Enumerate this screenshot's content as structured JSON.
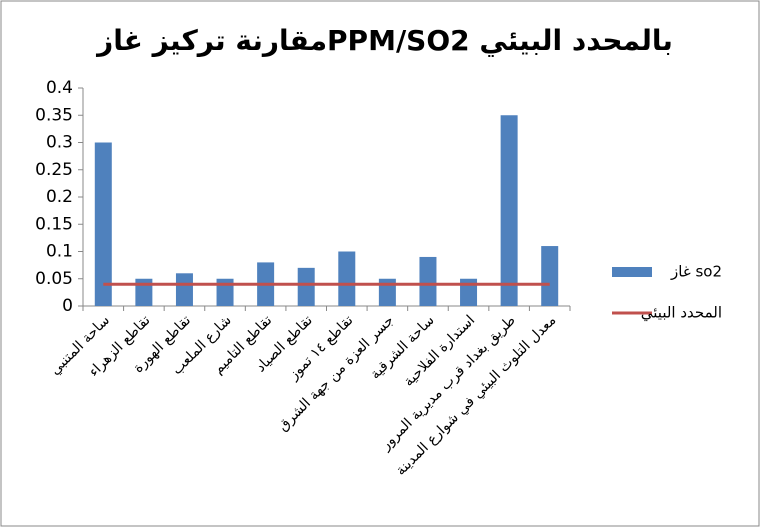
{
  "chart_data": {
    "type": "bar",
    "title": "مقارنة تركيز غازPPM/SO2 بالمحدد البيئي",
    "categories": [
      "ساحة المتنبي",
      "تقاطع الزهراء",
      "تقاطع الهورة",
      "شارع الملعب",
      "تقاطع التاميم",
      "تقاطع الصياد",
      "تقاطع ١٤ تموز",
      "جسر العزة من جهة الشرق",
      "ساحة الشرقية",
      "استدارة الفلاحية",
      "طريق بغداد قرب مديرية المرور",
      "معدل التلوث البيئي في شوارع المدينة"
    ],
    "series": [
      {
        "name": "غاز so2",
        "type": "bar",
        "color": "#4f81bd",
        "values": [
          0.3,
          0.05,
          0.06,
          0.05,
          0.08,
          0.07,
          0.1,
          0.05,
          0.09,
          0.05,
          0.35,
          0.11
        ]
      },
      {
        "name": "المحدد البيئي",
        "type": "line",
        "color": "#c0504d",
        "values": [
          0.04,
          0.04,
          0.04,
          0.04,
          0.04,
          0.04,
          0.04,
          0.04,
          0.04,
          0.04,
          0.04,
          0.04
        ]
      }
    ],
    "ylim": [
      0,
      0.4
    ],
    "yticks": [
      0,
      0.05,
      0.1,
      0.15,
      0.2,
      0.25,
      0.3,
      0.35,
      0.4
    ],
    "grid": false,
    "legend": "right"
  }
}
